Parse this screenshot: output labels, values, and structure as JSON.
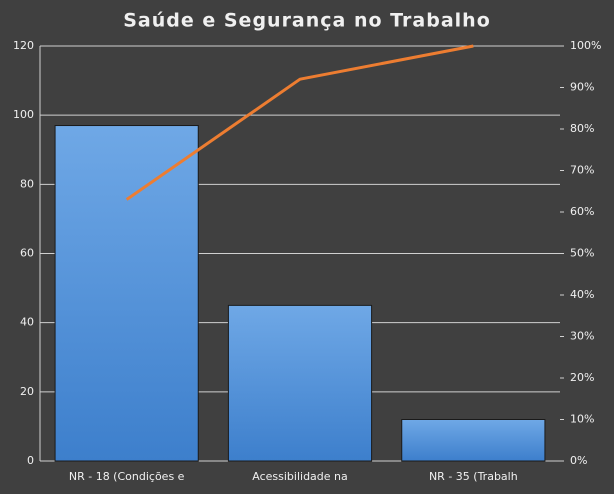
{
  "chart_data": {
    "type": "bar",
    "title": "Saúde e Segurança no Trabalho",
    "categories": [
      "NR - 18 (Condições e",
      "Acessibilidade na",
      "NR - 35 (Trabalh"
    ],
    "series": [
      {
        "type": "bar",
        "color": "#4a8fd8",
        "values": [
          97,
          45,
          12
        ]
      },
      {
        "type": "line",
        "color": "#ed7d31",
        "axis": "y2",
        "values": [
          63,
          92,
          100
        ]
      }
    ],
    "ylim": [
      0,
      120
    ],
    "yticks": [
      0,
      20,
      40,
      60,
      80,
      100,
      120
    ],
    "y2lim": [
      0,
      100
    ],
    "y2ticks": [
      {
        "value": 0,
        "label": "0%"
      },
      {
        "value": 10,
        "label": "10%"
      },
      {
        "value": 20,
        "label": "20%"
      },
      {
        "value": 30,
        "label": "30%"
      },
      {
        "value": 40,
        "label": "40%"
      },
      {
        "value": 50,
        "label": "50%"
      },
      {
        "value": 60,
        "label": "60%"
      },
      {
        "value": 70,
        "label": "70%"
      },
      {
        "value": 80,
        "label": "80%"
      },
      {
        "value": 90,
        "label": "90%"
      },
      {
        "value": 100,
        "label": "100%"
      }
    ],
    "grid": true
  }
}
